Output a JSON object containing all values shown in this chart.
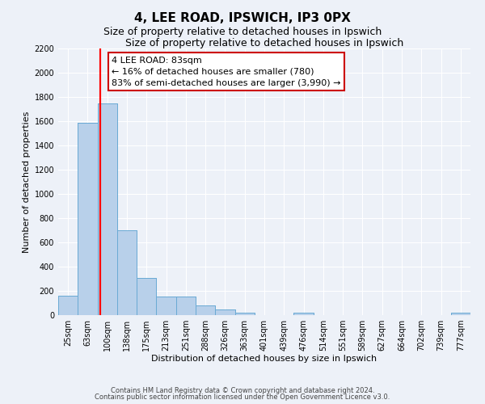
{
  "title": "4, LEE ROAD, IPSWICH, IP3 0PX",
  "subtitle": "Size of property relative to detached houses in Ipswich",
  "xlabel": "Distribution of detached houses by size in Ipswich",
  "ylabel": "Number of detached properties",
  "bar_labels": [
    "25sqm",
    "63sqm",
    "100sqm",
    "138sqm",
    "175sqm",
    "213sqm",
    "251sqm",
    "288sqm",
    "326sqm",
    "363sqm",
    "401sqm",
    "439sqm",
    "476sqm",
    "514sqm",
    "551sqm",
    "589sqm",
    "627sqm",
    "664sqm",
    "702sqm",
    "739sqm",
    "777sqm"
  ],
  "bar_values": [
    160,
    1590,
    1750,
    700,
    310,
    155,
    155,
    80,
    45,
    20,
    0,
    0,
    20,
    0,
    0,
    0,
    0,
    0,
    0,
    0,
    20
  ],
  "bar_color": "#b8d0ea",
  "bar_edge_color": "#6aaad4",
  "red_line_index": 1.65,
  "annotation_text": "4 LEE ROAD: 83sqm\n← 16% of detached houses are smaller (780)\n83% of semi-detached houses are larger (3,990) →",
  "annotation_box_color": "#ffffff",
  "annotation_box_edge": "#cc0000",
  "ylim": [
    0,
    2200
  ],
  "yticks": [
    0,
    200,
    400,
    600,
    800,
    1000,
    1200,
    1400,
    1600,
    1800,
    2000,
    2200
  ],
  "footer_line1": "Contains HM Land Registry data © Crown copyright and database right 2024.",
  "footer_line2": "Contains public sector information licensed under the Open Government Licence v3.0.",
  "bg_color": "#edf1f8",
  "grid_color": "#ffffff",
  "title_fontsize": 11,
  "subtitle_fontsize": 9,
  "axis_label_fontsize": 8,
  "tick_fontsize": 7,
  "annotation_fontsize": 8,
  "footer_fontsize": 6
}
